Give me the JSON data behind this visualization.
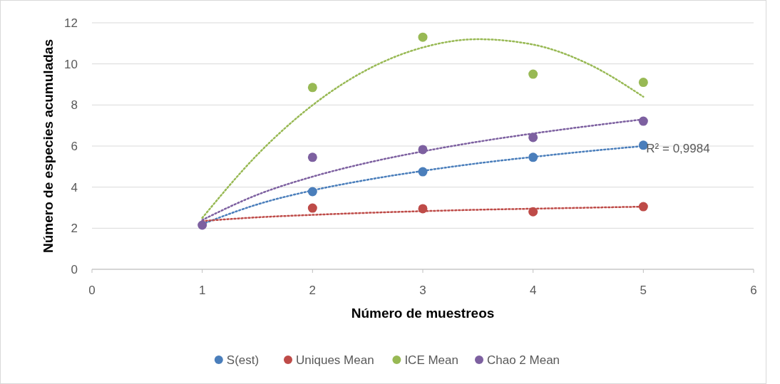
{
  "chart_data": {
    "type": "scatter",
    "xlabel": "Número de muestreos",
    "ylabel": "Número de especies acumuladas",
    "x": [
      1,
      2,
      3,
      4,
      5
    ],
    "xlim": [
      0,
      6
    ],
    "xticks": [
      0,
      1,
      2,
      3,
      4,
      5,
      6
    ],
    "ylim": [
      0,
      12
    ],
    "yticks": [
      0,
      2,
      4,
      6,
      8,
      10,
      12
    ],
    "grid": "y",
    "legend": "bottom",
    "marker": "circle",
    "series": [
      {
        "name": "S(est)",
        "color": "#4a7ebb",
        "values": [
          null,
          3.78,
          4.75,
          5.45,
          6.04
        ]
      },
      {
        "name": "Uniques Mean",
        "color": "#be4b48",
        "values": [
          null,
          2.98,
          2.95,
          2.8,
          3.05
        ]
      },
      {
        "name": "ICE Mean",
        "color": "#98b954",
        "values": [
          null,
          8.85,
          11.3,
          9.5,
          9.1
        ]
      },
      {
        "name": "Chao 2 Mean",
        "color": "#7d60a0",
        "values": [
          2.15,
          5.45,
          5.83,
          6.42,
          7.21
        ]
      },
      {
        "type": "line",
        "marker": "none",
        "line_style": "dotted",
        "color": "#4a7ebb",
        "x": [
          1,
          1.5,
          2,
          2.5,
          3,
          3.5,
          4,
          4.5,
          5
        ],
        "values": [
          2.2,
          3.16,
          3.84,
          4.36,
          4.79,
          5.16,
          5.47,
          5.75,
          6.0
        ]
      },
      {
        "type": "line",
        "marker": "none",
        "line_style": "dotted",
        "color": "#be4b48",
        "x": [
          1,
          1.5,
          2,
          2.5,
          3,
          3.5,
          4,
          4.5,
          5
        ],
        "values": [
          2.35,
          2.53,
          2.65,
          2.75,
          2.83,
          2.9,
          2.95,
          3.0,
          3.05
        ]
      },
      {
        "type": "line",
        "marker": "none",
        "line_style": "dotted",
        "color": "#98b954",
        "x": [
          1,
          1.5,
          2,
          2.5,
          3,
          3.5,
          4,
          4.5,
          5
        ],
        "values": [
          2.5,
          5.58,
          7.99,
          9.73,
          10.8,
          11.2,
          10.94,
          10.0,
          8.4
        ]
      },
      {
        "type": "line",
        "marker": "none",
        "line_style": "dotted",
        "color": "#7d60a0",
        "x": [
          1,
          1.5,
          2,
          2.5,
          3,
          3.5,
          4,
          4.5,
          5
        ],
        "values": [
          2.4,
          3.63,
          4.51,
          5.19,
          5.74,
          6.21,
          6.61,
          6.97,
          7.3
        ]
      }
    ],
    "annotations": [
      {
        "text": "R² = 0,9984",
        "x": 5,
        "y": 6.0
      }
    ]
  }
}
